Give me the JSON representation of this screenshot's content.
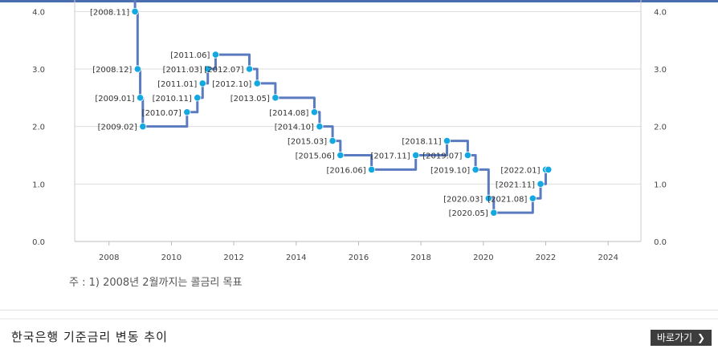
{
  "chart_data": {
    "type": "line",
    "title": "",
    "xlabel": "",
    "ylabel": "",
    "xlim": [
      2006.9,
      2025.05
    ],
    "ylim": [
      0,
      4.2
    ],
    "x_ticks": [
      2008,
      2010,
      2012,
      2014,
      2016,
      2018,
      2020,
      2022,
      2024
    ],
    "y_ticks": [
      "0.0",
      "1.0",
      "2.0",
      "3.0",
      "4.0"
    ],
    "line_color": "#5a7bbf",
    "point_color": "#14a8e0",
    "grid": true,
    "series": [
      {
        "values": [
          {
            "date": "2008.11",
            "rate": 4.0,
            "label": "[2008.11]"
          },
          {
            "date": "2008.12",
            "rate": 3.0,
            "label": "[2008.12]"
          },
          {
            "date": "2009.01",
            "rate": 2.5,
            "label": "[2009.01]"
          },
          {
            "date": "2009.02",
            "rate": 2.0,
            "label": "[2009.02]"
          },
          {
            "date": "2010.07",
            "rate": 2.25,
            "label": "[2010.07]"
          },
          {
            "date": "2010.11",
            "rate": 2.5,
            "label": "[2010.11]"
          },
          {
            "date": "2011.01",
            "rate": 2.75,
            "label": "[2011.01]"
          },
          {
            "date": "2011.03",
            "rate": 3.0,
            "label": "[2011.03]"
          },
          {
            "date": "2011.06",
            "rate": 3.25,
            "label": "[2011.06]"
          },
          {
            "date": "2012.07",
            "rate": 3.0,
            "label": "[2012.07]"
          },
          {
            "date": "2012.10",
            "rate": 2.75,
            "label": "[2012.10]"
          },
          {
            "date": "2013.05",
            "rate": 2.5,
            "label": "[2013.05]"
          },
          {
            "date": "2014.08",
            "rate": 2.25,
            "label": "[2014.08]"
          },
          {
            "date": "2014.10",
            "rate": 2.0,
            "label": "[2014.10]"
          },
          {
            "date": "2015.03",
            "rate": 1.75,
            "label": "[2015.03]"
          },
          {
            "date": "2015.06",
            "rate": 1.5,
            "label": "[2015.06]"
          },
          {
            "date": "2016.06",
            "rate": 1.25,
            "label": "[2016.06]"
          },
          {
            "date": "2017.11",
            "rate": 1.5,
            "label": "[2017.11]"
          },
          {
            "date": "2018.11",
            "rate": 1.75,
            "label": "[2018.11]"
          },
          {
            "date": "2019.07",
            "rate": 1.5,
            "label": "[2019.07]"
          },
          {
            "date": "2019.10",
            "rate": 1.25,
            "label": "[2019.10]"
          },
          {
            "date": "2020.03",
            "rate": 0.75,
            "label": "[2020.03]"
          },
          {
            "date": "2020.05",
            "rate": 0.5,
            "label": "[2020.05]"
          },
          {
            "date": "2021.08",
            "rate": 0.75,
            "label": "[2021.08]"
          },
          {
            "date": "2021.11",
            "rate": 1.0,
            "label": "[2021.11]"
          },
          {
            "date": "2022.01",
            "rate": 1.25,
            "label": "[2022.01]"
          },
          {
            "date": "2022.02",
            "rate": 1.25
          }
        ]
      }
    ]
  },
  "note": "주 : 1) 2008년 2월까지는 콜금리 목표",
  "footer": {
    "title": "한국은행 기준금리 변동 추이",
    "button_label": "바로가기",
    "button_icon": "chevron-right-icon"
  }
}
